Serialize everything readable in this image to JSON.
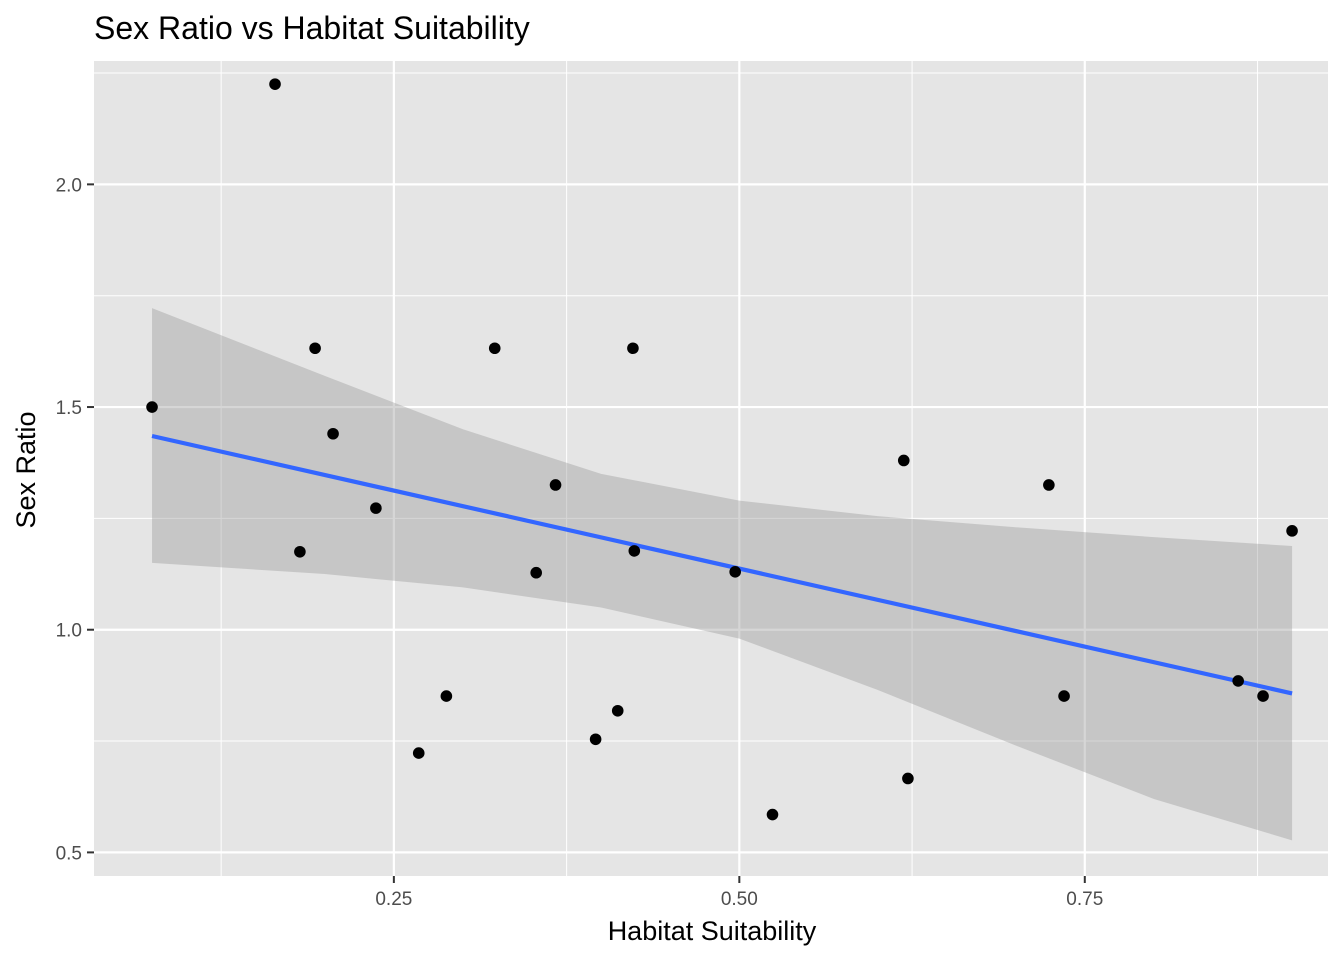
{
  "chart_data": {
    "type": "scatter",
    "title": "Sex Ratio vs Habitat Suitability",
    "xlabel": "Habitat Suitability",
    "ylabel": "Sex Ratio",
    "xlim": [
      0.033,
      0.926
    ],
    "ylim": [
      0.447,
      2.277
    ],
    "x_major_ticks": [
      0.25,
      0.5,
      0.75
    ],
    "x_tick_labels": [
      "0.25",
      "0.50",
      "0.75"
    ],
    "x_minor_ticks": [
      0.125,
      0.375,
      0.625,
      0.875
    ],
    "y_major_ticks": [
      0.5,
      1.0,
      1.5,
      2.0
    ],
    "y_tick_labels": [
      "0.5",
      "1.0",
      "1.5",
      "2.0"
    ],
    "y_minor_ticks": [
      0.75,
      1.25,
      1.75,
      2.25
    ],
    "grid": true,
    "colors": {
      "panel_background": "#e5e5e5",
      "grid": "#ffffff",
      "points": "#000000",
      "trend_line": "#3366ff",
      "confidence_band": "#999999"
    },
    "points": [
      {
        "x": 0.075,
        "y": 1.5
      },
      {
        "x": 0.164,
        "y": 2.225
      },
      {
        "x": 0.182,
        "y": 1.175
      },
      {
        "x": 0.193,
        "y": 1.632
      },
      {
        "x": 0.206,
        "y": 1.44
      },
      {
        "x": 0.237,
        "y": 1.273
      },
      {
        "x": 0.268,
        "y": 0.723
      },
      {
        "x": 0.288,
        "y": 0.851
      },
      {
        "x": 0.323,
        "y": 1.632
      },
      {
        "x": 0.353,
        "y": 1.128
      },
      {
        "x": 0.367,
        "y": 1.325
      },
      {
        "x": 0.396,
        "y": 0.754
      },
      {
        "x": 0.412,
        "y": 0.818
      },
      {
        "x": 0.423,
        "y": 1.632
      },
      {
        "x": 0.424,
        "y": 1.177
      },
      {
        "x": 0.497,
        "y": 1.13
      },
      {
        "x": 0.524,
        "y": 0.585
      },
      {
        "x": 0.619,
        "y": 1.38
      },
      {
        "x": 0.622,
        "y": 0.666
      },
      {
        "x": 0.724,
        "y": 1.325
      },
      {
        "x": 0.735,
        "y": 0.851
      },
      {
        "x": 0.861,
        "y": 0.885
      },
      {
        "x": 0.879,
        "y": 0.851
      },
      {
        "x": 0.9,
        "y": 1.222
      }
    ],
    "trend_line": {
      "x": [
        0.075,
        0.9
      ],
      "y": [
        1.435,
        0.857
      ]
    },
    "confidence_band": {
      "x": [
        0.075,
        0.2,
        0.3,
        0.4,
        0.5,
        0.6,
        0.7,
        0.8,
        0.9
      ],
      "upper": [
        1.722,
        1.57,
        1.45,
        1.35,
        1.29,
        1.255,
        1.23,
        1.208,
        1.188
      ],
      "lower": [
        1.15,
        1.125,
        1.095,
        1.05,
        0.98,
        0.865,
        0.74,
        0.62,
        0.527
      ]
    }
  }
}
